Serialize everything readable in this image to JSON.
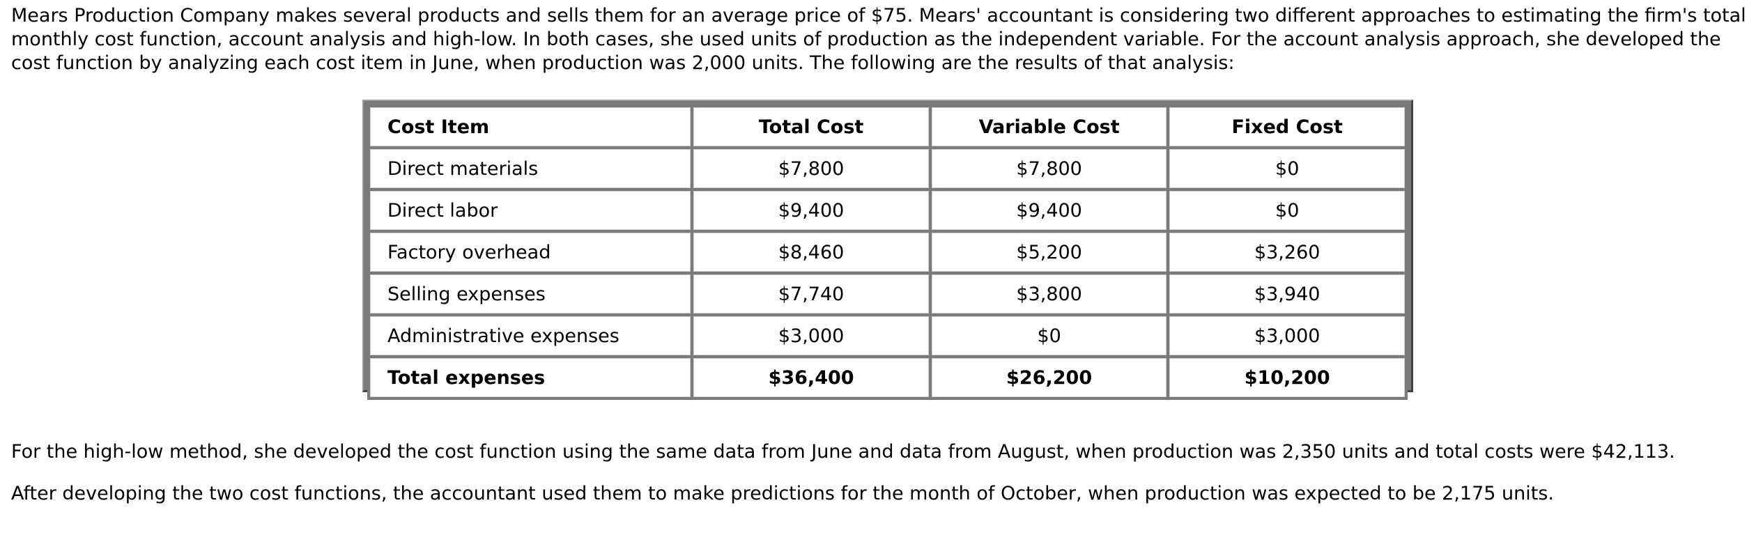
{
  "intro": "Mears Production Company makes several products and sells them for an average price of $75. Mears' accountant is considering two different approaches to estimating the firm's total monthly cost function, account analysis and high-low. In both cases, she used units of production as the independent variable. For the account analysis approach, she developed the cost function by analyzing each cost item in June, when production was 2,000 units. The following are the results of that analysis:",
  "table": {
    "headers": [
      "Cost Item",
      "Total Cost",
      "Variable Cost",
      "Fixed Cost"
    ],
    "rows": [
      [
        "Direct materials",
        "$7,800",
        "$7,800",
        "$0"
      ],
      [
        "Direct labor",
        "$9,400",
        "$9,400",
        "$0"
      ],
      [
        "Factory overhead",
        "$8,460",
        "$5,200",
        "$3,260"
      ],
      [
        "Selling expenses",
        "$7,740",
        "$3,800",
        "$3,940"
      ],
      [
        "Administrative expenses",
        "$3,000",
        "$0",
        "$3,000"
      ]
    ],
    "total": [
      "Total expenses",
      "$36,400",
      "$26,200",
      "$10,200"
    ]
  },
  "paragraphs": [
    "For the high-low method, she developed the cost function using the same data from June and data from August, when production was 2,350 units and total costs were $42,113.",
    "After developing the two cost functions, the accountant used them to make predictions for the month of October, when production was expected to be 2,175 units."
  ]
}
